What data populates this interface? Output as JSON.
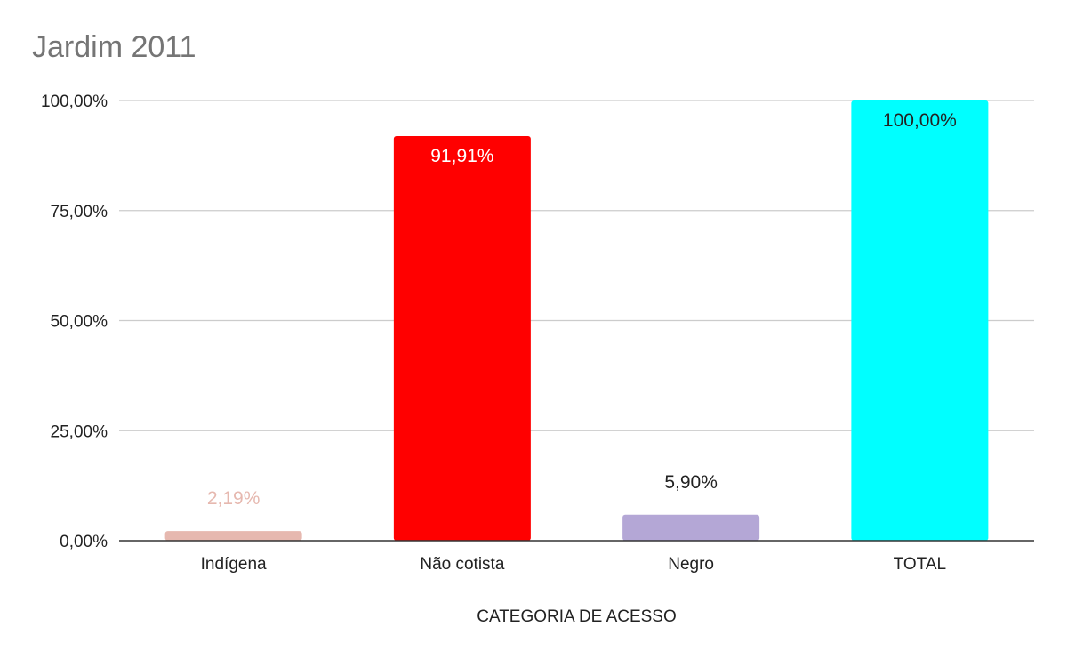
{
  "chart_data": {
    "type": "bar",
    "title": "Jardim 2011",
    "xlabel": "CATEGORIA DE ACESSO",
    "ylabel": "",
    "ylim": [
      0,
      100
    ],
    "yticks": [
      0,
      25,
      50,
      75,
      100
    ],
    "ytick_labels": [
      "0,00%",
      "25,00%",
      "50,00%",
      "75,00%",
      "100,00%"
    ],
    "grid": true,
    "categories": [
      "Indígena",
      "Não cotista",
      "Negro",
      "TOTAL"
    ],
    "values": [
      2.19,
      91.91,
      5.9,
      100.0
    ],
    "value_labels": [
      "2,19%",
      "91,91%",
      "5,90%",
      "100,00%"
    ],
    "colors": [
      "#e6b8af",
      "#ff0000",
      "#b4a7d6",
      "#00ffff"
    ],
    "label_colors": [
      "#e6b8af",
      "#ffffff",
      "#222222",
      "#222222"
    ]
  }
}
